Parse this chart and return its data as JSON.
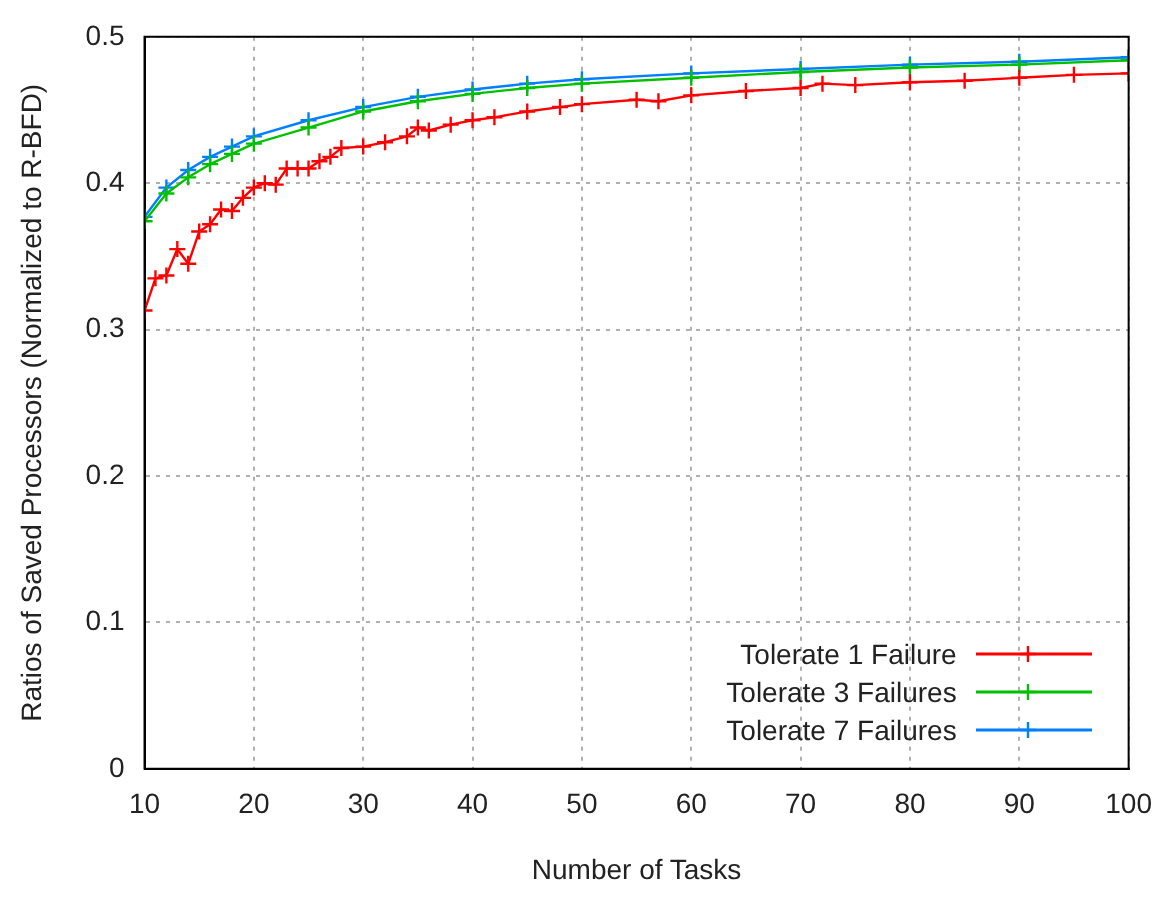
{
  "chart_data": {
    "type": "line",
    "xlabel": "Number of Tasks",
    "ylabel": "Ratios of Saved Processors (Normalized to R-BFD)",
    "xlim": [
      10,
      100
    ],
    "xticks": [
      10,
      20,
      30,
      40,
      50,
      60,
      70,
      80,
      90,
      100
    ],
    "ylim": [
      0,
      0.5
    ],
    "yticks": [
      0,
      0.1,
      0.2,
      0.3,
      0.4,
      0.5
    ],
    "grid": true,
    "legend": "bottom right",
    "series": [
      {
        "name": "Tolerate 1 Failure",
        "color": "#ff0000",
        "marker": "cross",
        "x": [
          10,
          11,
          12,
          13,
          14,
          15,
          16,
          17,
          18,
          19,
          20,
          21,
          22,
          23,
          24,
          25,
          26,
          27,
          28,
          30,
          32,
          34,
          35,
          36,
          38,
          40,
          42,
          45,
          48,
          50,
          55,
          57,
          60,
          65,
          70,
          72,
          75,
          80,
          85,
          90,
          95,
          100
        ],
        "values": [
          0.313,
          0.335,
          0.337,
          0.355,
          0.345,
          0.367,
          0.372,
          0.382,
          0.381,
          0.39,
          0.397,
          0.4,
          0.399,
          0.41,
          0.41,
          0.41,
          0.415,
          0.418,
          0.424,
          0.425,
          0.428,
          0.432,
          0.438,
          0.436,
          0.44,
          0.443,
          0.445,
          0.449,
          0.452,
          0.454,
          0.457,
          0.456,
          0.46,
          0.463,
          0.465,
          0.468,
          0.467,
          0.469,
          0.47,
          0.472,
          0.474,
          0.475
        ]
      },
      {
        "name": "Tolerate 3 Failures",
        "color": "#00c000",
        "marker": "cross",
        "x": [
          10,
          12,
          14,
          16,
          18,
          20,
          25,
          30,
          35,
          40,
          45,
          50,
          60,
          70,
          80,
          90,
          100
        ],
        "values": [
          0.374,
          0.393,
          0.404,
          0.413,
          0.42,
          0.427,
          0.438,
          0.449,
          0.456,
          0.461,
          0.465,
          0.468,
          0.472,
          0.476,
          0.479,
          0.481,
          0.484
        ]
      },
      {
        "name": "Tolerate 7 Failures",
        "color": "#0080ff",
        "marker": "cross",
        "x": [
          10,
          12,
          14,
          16,
          18,
          20,
          25,
          30,
          35,
          40,
          45,
          50,
          60,
          70,
          80,
          90,
          100
        ],
        "values": [
          0.377,
          0.397,
          0.409,
          0.418,
          0.425,
          0.432,
          0.443,
          0.452,
          0.459,
          0.464,
          0.468,
          0.471,
          0.475,
          0.478,
          0.481,
          0.483,
          0.486
        ]
      }
    ]
  }
}
